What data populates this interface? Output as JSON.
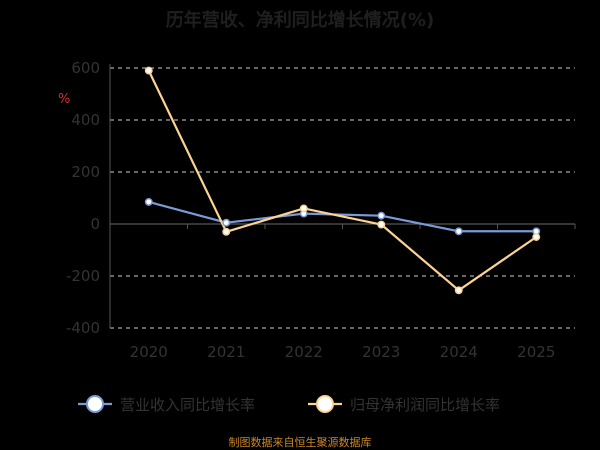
{
  "chart_data": {
    "type": "line",
    "title": "历年营收、净利同比增长情况(%)",
    "ylabel": "%",
    "categories": [
      "2020",
      "2021",
      "2022",
      "2023",
      "2024",
      "2025"
    ],
    "ylim": [
      -400,
      600
    ],
    "yticks": [
      600,
      400,
      200,
      0,
      -200,
      -400
    ],
    "grid": true,
    "legend_position": "bottom",
    "series": [
      {
        "name": "营业收入同比增长率",
        "color": "#7b9bd6",
        "values": [
          85,
          5,
          40,
          32,
          -28,
          -28
        ]
      },
      {
        "name": "归母净利润同比增长率",
        "color": "#fcd393",
        "values": [
          590,
          -30,
          60,
          -2,
          -255,
          -50
        ]
      }
    ]
  },
  "source_text": "制图数据来自恒生聚源数据库"
}
